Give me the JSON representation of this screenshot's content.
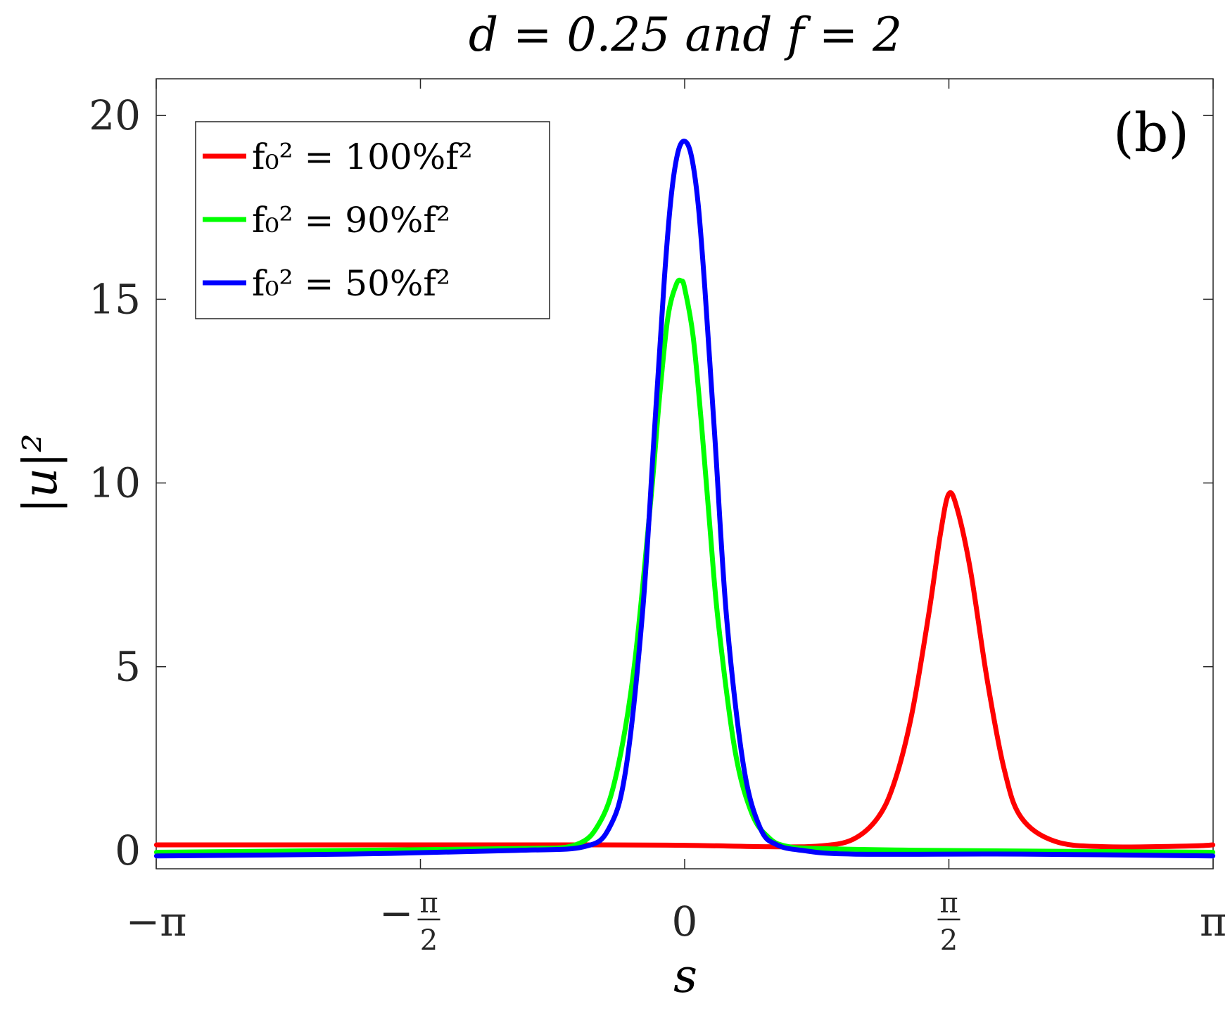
{
  "chart_data": {
    "type": "line",
    "title": "d = 0.25 and f = 2",
    "panel_label": "(b)",
    "xlabel": "s",
    "ylabel": "|u|²",
    "xlim": [
      -3.14159,
      3.14159
    ],
    "ylim": [
      -0.5,
      21
    ],
    "xticks": [
      {
        "value": -3.14159,
        "label": "−π"
      },
      {
        "value": -1.5708,
        "label": "−π/2"
      },
      {
        "value": 0,
        "label": "0"
      },
      {
        "value": 1.5708,
        "label": "π/2"
      },
      {
        "value": 3.14159,
        "label": "π"
      }
    ],
    "yticks": [
      0,
      5,
      10,
      15,
      20
    ],
    "grid": false,
    "legend_position": "top-left",
    "series": [
      {
        "name": "f₀² = 100%f²",
        "color": "#ff0000",
        "x": [
          -3.14,
          -2.5,
          -2.0,
          -1.5,
          -1.0,
          -0.5,
          0.0,
          0.5,
          0.8,
          1.0,
          1.15,
          1.25,
          1.35,
          1.45,
          1.52,
          1.57,
          1.62,
          1.7,
          1.8,
          1.9,
          2.0,
          2.2,
          2.5,
          3.0,
          3.14
        ],
        "y": [
          0.15,
          0.15,
          0.15,
          0.15,
          0.15,
          0.15,
          0.14,
          0.1,
          0.12,
          0.3,
          0.9,
          1.9,
          3.7,
          6.4,
          8.6,
          9.7,
          9.3,
          7.6,
          4.6,
          2.2,
          0.9,
          0.25,
          0.1,
          0.12,
          0.15
        ]
      },
      {
        "name": "f₀² = 90%f²",
        "color": "#00ff00",
        "x": [
          -3.14,
          -2.0,
          -1.0,
          -0.65,
          -0.5,
          -0.4,
          -0.3,
          -0.2,
          -0.15,
          -0.1,
          -0.05,
          -0.02,
          0.0,
          0.05,
          0.1,
          0.15,
          0.2,
          0.3,
          0.4,
          0.5,
          0.6,
          0.8,
          1.5,
          3.14
        ],
        "y": [
          -0.05,
          0.0,
          0.05,
          0.15,
          0.8,
          2.2,
          5.0,
          9.6,
          12.3,
          14.5,
          15.4,
          15.5,
          15.3,
          14.0,
          11.6,
          8.8,
          6.2,
          2.7,
          1.0,
          0.35,
          0.12,
          0.05,
          0.0,
          -0.05
        ]
      },
      {
        "name": "f₀² = 50%f²",
        "color": "#0000ff",
        "x": [
          -3.14,
          -2.0,
          -1.0,
          -0.6,
          -0.45,
          -0.35,
          -0.25,
          -0.18,
          -0.12,
          -0.08,
          -0.04,
          0.0,
          0.04,
          0.08,
          0.12,
          0.18,
          0.25,
          0.35,
          0.45,
          0.55,
          0.7,
          1.0,
          2.0,
          3.14
        ],
        "y": [
          -0.15,
          -0.1,
          0.0,
          0.1,
          0.6,
          2.2,
          6.5,
          11.4,
          15.6,
          17.8,
          19.0,
          19.3,
          18.9,
          17.6,
          15.3,
          11.2,
          6.3,
          2.3,
          0.6,
          0.15,
          0.0,
          -0.1,
          -0.1,
          -0.15
        ]
      }
    ]
  }
}
